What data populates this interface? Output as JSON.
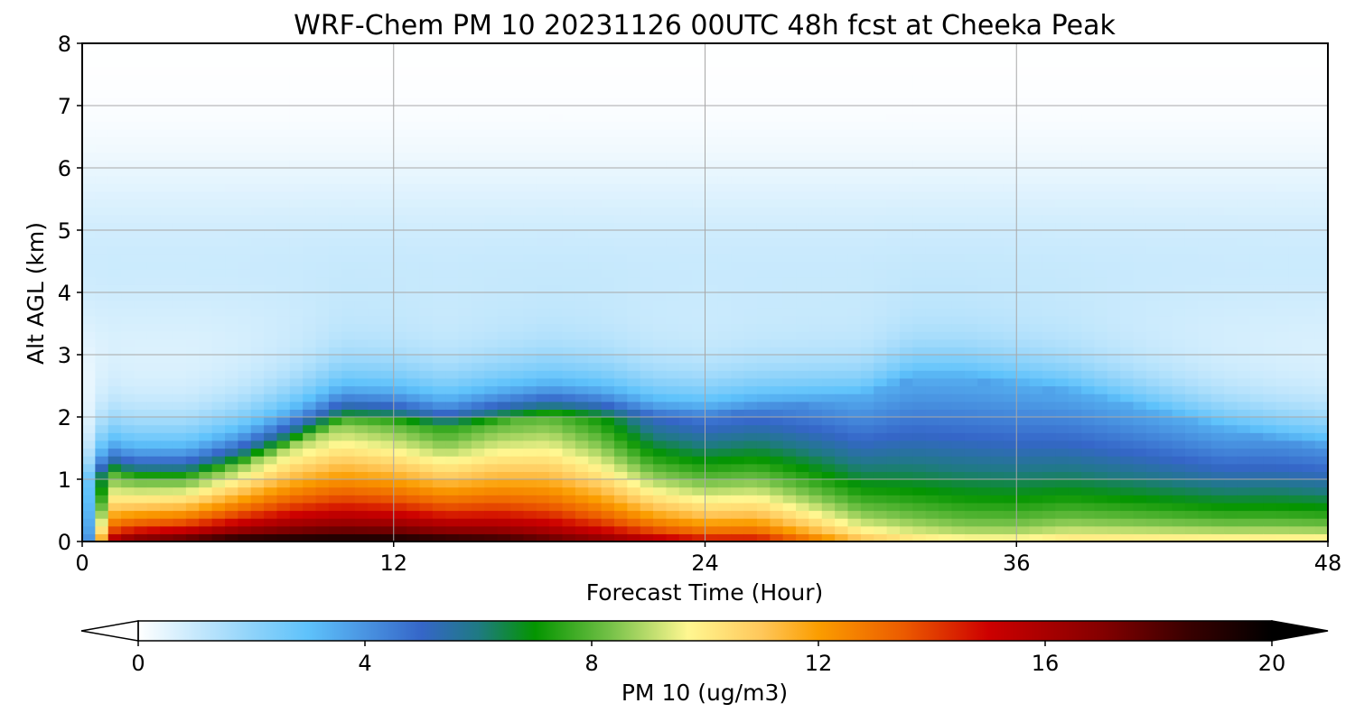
{
  "chart_data": {
    "type": "heatmap",
    "title": "WRF-Chem PM 10  20231126 00UTC 48h fcst at Cheeka Peak",
    "xlabel": "Forecast Time (Hour)",
    "ylabel": "Alt AGL (km)",
    "xlim": [
      0,
      48
    ],
    "ylim": [
      0,
      8
    ],
    "x_ticks": [
      "0",
      "12",
      "24",
      "36",
      "48"
    ],
    "y_ticks": [
      "0",
      "1",
      "2",
      "3",
      "4",
      "5",
      "6",
      "7",
      "8"
    ],
    "grid": true,
    "colorbar": {
      "label": "PM 10  (ug/m3)",
      "range": [
        0,
        20
      ],
      "ticks": [
        "0",
        "4",
        "8",
        "12",
        "16",
        "20"
      ],
      "extend": "both",
      "stops": [
        {
          "v": 0,
          "c": "#ffffff"
        },
        {
          "v": 2,
          "c": "#8fd3fa"
        },
        {
          "v": 3,
          "c": "#5ec2fb"
        },
        {
          "v": 5,
          "c": "#3566c8"
        },
        {
          "v": 6,
          "c": "#1f7a83"
        },
        {
          "v": 7,
          "c": "#049500"
        },
        {
          "v": 8.3,
          "c": "#72c046"
        },
        {
          "v": 9.7,
          "c": "#fff791"
        },
        {
          "v": 11,
          "c": "#ffc75a"
        },
        {
          "v": 12,
          "c": "#fb9d00"
        },
        {
          "v": 13.5,
          "c": "#ec5b00"
        },
        {
          "v": 15,
          "c": "#cd0000"
        },
        {
          "v": 17,
          "c": "#840000"
        },
        {
          "v": 18.5,
          "c": "#3a0000"
        },
        {
          "v": 20,
          "c": "#000000"
        }
      ]
    },
    "profiles": {
      "hours": [
        0,
        1,
        2,
        4,
        6,
        8,
        10,
        12,
        14,
        16,
        18,
        20,
        22,
        24,
        26,
        28,
        30,
        32,
        34,
        36,
        38,
        40,
        42,
        44,
        46,
        48
      ],
      "surface": [
        0,
        17,
        19,
        20,
        21,
        21,
        21,
        21,
        20.5,
        20,
        19,
        18,
        17,
        16,
        16,
        14,
        12,
        11,
        10.5,
        10.5,
        11,
        11,
        11,
        11,
        11,
        11
      ],
      "boundary_layer_top_km": [
        1.0,
        1.1,
        1.0,
        1.0,
        1.2,
        1.5,
        1.9,
        1.9,
        1.8,
        1.9,
        2.0,
        2.0,
        2.0,
        2.0,
        2.1,
        2.2,
        2.3,
        2.6,
        2.6,
        2.5,
        2.4,
        2.2,
        2.0,
        1.8,
        1.6,
        1.5
      ],
      "boundary_layer_value": [
        1,
        8,
        8,
        8,
        8.5,
        9,
        8.5,
        8,
        7.5,
        8,
        8,
        7,
        5,
        4.5,
        4.5,
        4,
        3.5,
        3.5,
        3.5,
        3.5,
        3.5,
        3.5,
        3.5,
        3.5,
        4,
        4
      ]
    }
  }
}
